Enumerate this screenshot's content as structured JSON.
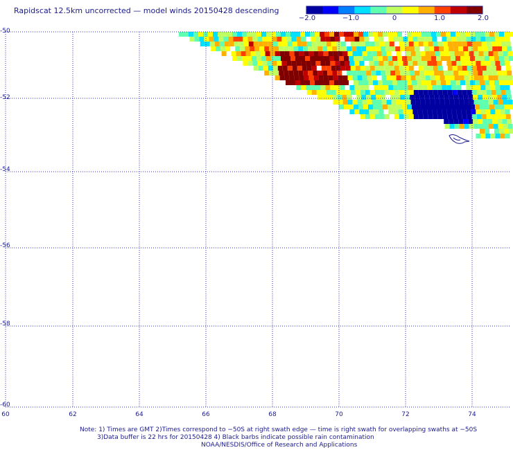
{
  "title": "Rapidscat 12.5km uncorrected — model winds 20150428 descending",
  "colorbar": {
    "ticks": [
      "−2.0",
      "−1.0",
      "0",
      "1.0",
      "2.0"
    ],
    "range": [
      -2.0,
      2.0
    ],
    "colors": [
      "#0000a0",
      "#0000ff",
      "#0080ff",
      "#00e0ff",
      "#60ffb0",
      "#c0ff60",
      "#ffff00",
      "#ffb000",
      "#ff4000",
      "#c00000",
      "#800000"
    ]
  },
  "axes": {
    "lat_labels": [
      "-50",
      "-52",
      "-54",
      "-56",
      "-58",
      "-60"
    ],
    "lon_labels": [
      "60",
      "62",
      "64",
      "66",
      "68",
      "70",
      "72",
      "74"
    ],
    "lat_range": [
      -60,
      -50
    ],
    "lon_range": [
      60,
      75
    ],
    "grid": true,
    "grid_color": "#3030c0"
  },
  "notes": {
    "line1": "Note: 1) Times are GMT 2)Times correspond to −50S at right swath edge — time is right swath for overlapping swaths at −50S",
    "line2": "3)Data buffer is 22 hrs for 20150428 4) Black barbs indicate possible rain contamination",
    "line3": "NOAA/NESDIS/Office of Research and Applications"
  }
}
